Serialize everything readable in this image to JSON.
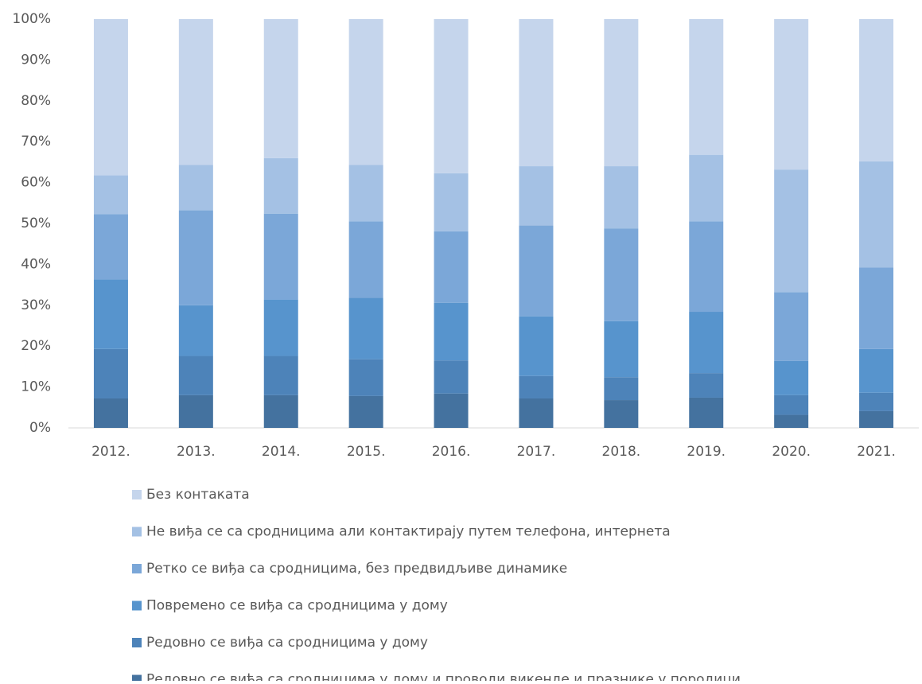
{
  "chart_data": {
    "type": "stacked_bar",
    "categories": [
      "2012.",
      "2013.",
      "2014.",
      "2015.",
      "2016.",
      "2017.",
      "2018.",
      "2019.",
      "2020.",
      "2021."
    ],
    "series": [
      {
        "name": "Редовно се виђа са сродницима у дому и проводи викенде и празнике у породици",
        "color": "#44729f",
        "values": [
          7.2,
          8,
          8,
          7.8,
          8.4,
          7.2,
          6.8,
          7.4,
          3.2,
          4.1
        ]
      },
      {
        "name": "Редовно се виђа са сродницима у дому",
        "color": "#4d83b9",
        "values": [
          12.1,
          9.6,
          9.6,
          9.0,
          8.1,
          5.5,
          5.6,
          6.0,
          4.8,
          4.5
        ]
      },
      {
        "name": "Повремено се виђа са сродницима у дому",
        "color": "#5794cd",
        "values": [
          17.0,
          12.4,
          13.8,
          15.0,
          14.1,
          14.6,
          13.7,
          15.0,
          8.4,
          10.7
        ]
      },
      {
        "name": "Ретко се виђа са сродницима, без предвидљиве динамике",
        "color": "#7ba7d8",
        "values": [
          16.0,
          23.2,
          21.0,
          18.7,
          17.5,
          22.2,
          22.7,
          22.1,
          16.8,
          19.9
        ]
      },
      {
        "name": "Не виђа се са сродницима али контактирају путем  телефона, интернета",
        "color": "#a4c1e4",
        "values": [
          9.5,
          11.1,
          13.6,
          13.8,
          14.2,
          14.5,
          15.2,
          16.3,
          30.0,
          26.0
        ]
      },
      {
        "name": "Без контаката",
        "color": "#c5d5ec",
        "values": [
          38.2,
          35.7,
          34.0,
          35.7,
          37.7,
          36.0,
          36.0,
          33.2,
          36.8,
          34.8
        ]
      }
    ],
    "ylim": [
      0,
      100
    ],
    "yticks": [
      {
        "value": 0,
        "label": "0%"
      },
      {
        "value": 10,
        "label": "10%"
      },
      {
        "value": 20,
        "label": "20%"
      },
      {
        "value": 30,
        "label": "30%"
      },
      {
        "value": 40,
        "label": "40%"
      },
      {
        "value": 50,
        "label": "50%"
      },
      {
        "value": 60,
        "label": "60%"
      },
      {
        "value": 70,
        "label": "70%"
      },
      {
        "value": 80,
        "label": "80%"
      },
      {
        "value": 90,
        "label": "90%"
      },
      {
        "value": 100,
        "label": "100%"
      }
    ],
    "grid": false
  }
}
